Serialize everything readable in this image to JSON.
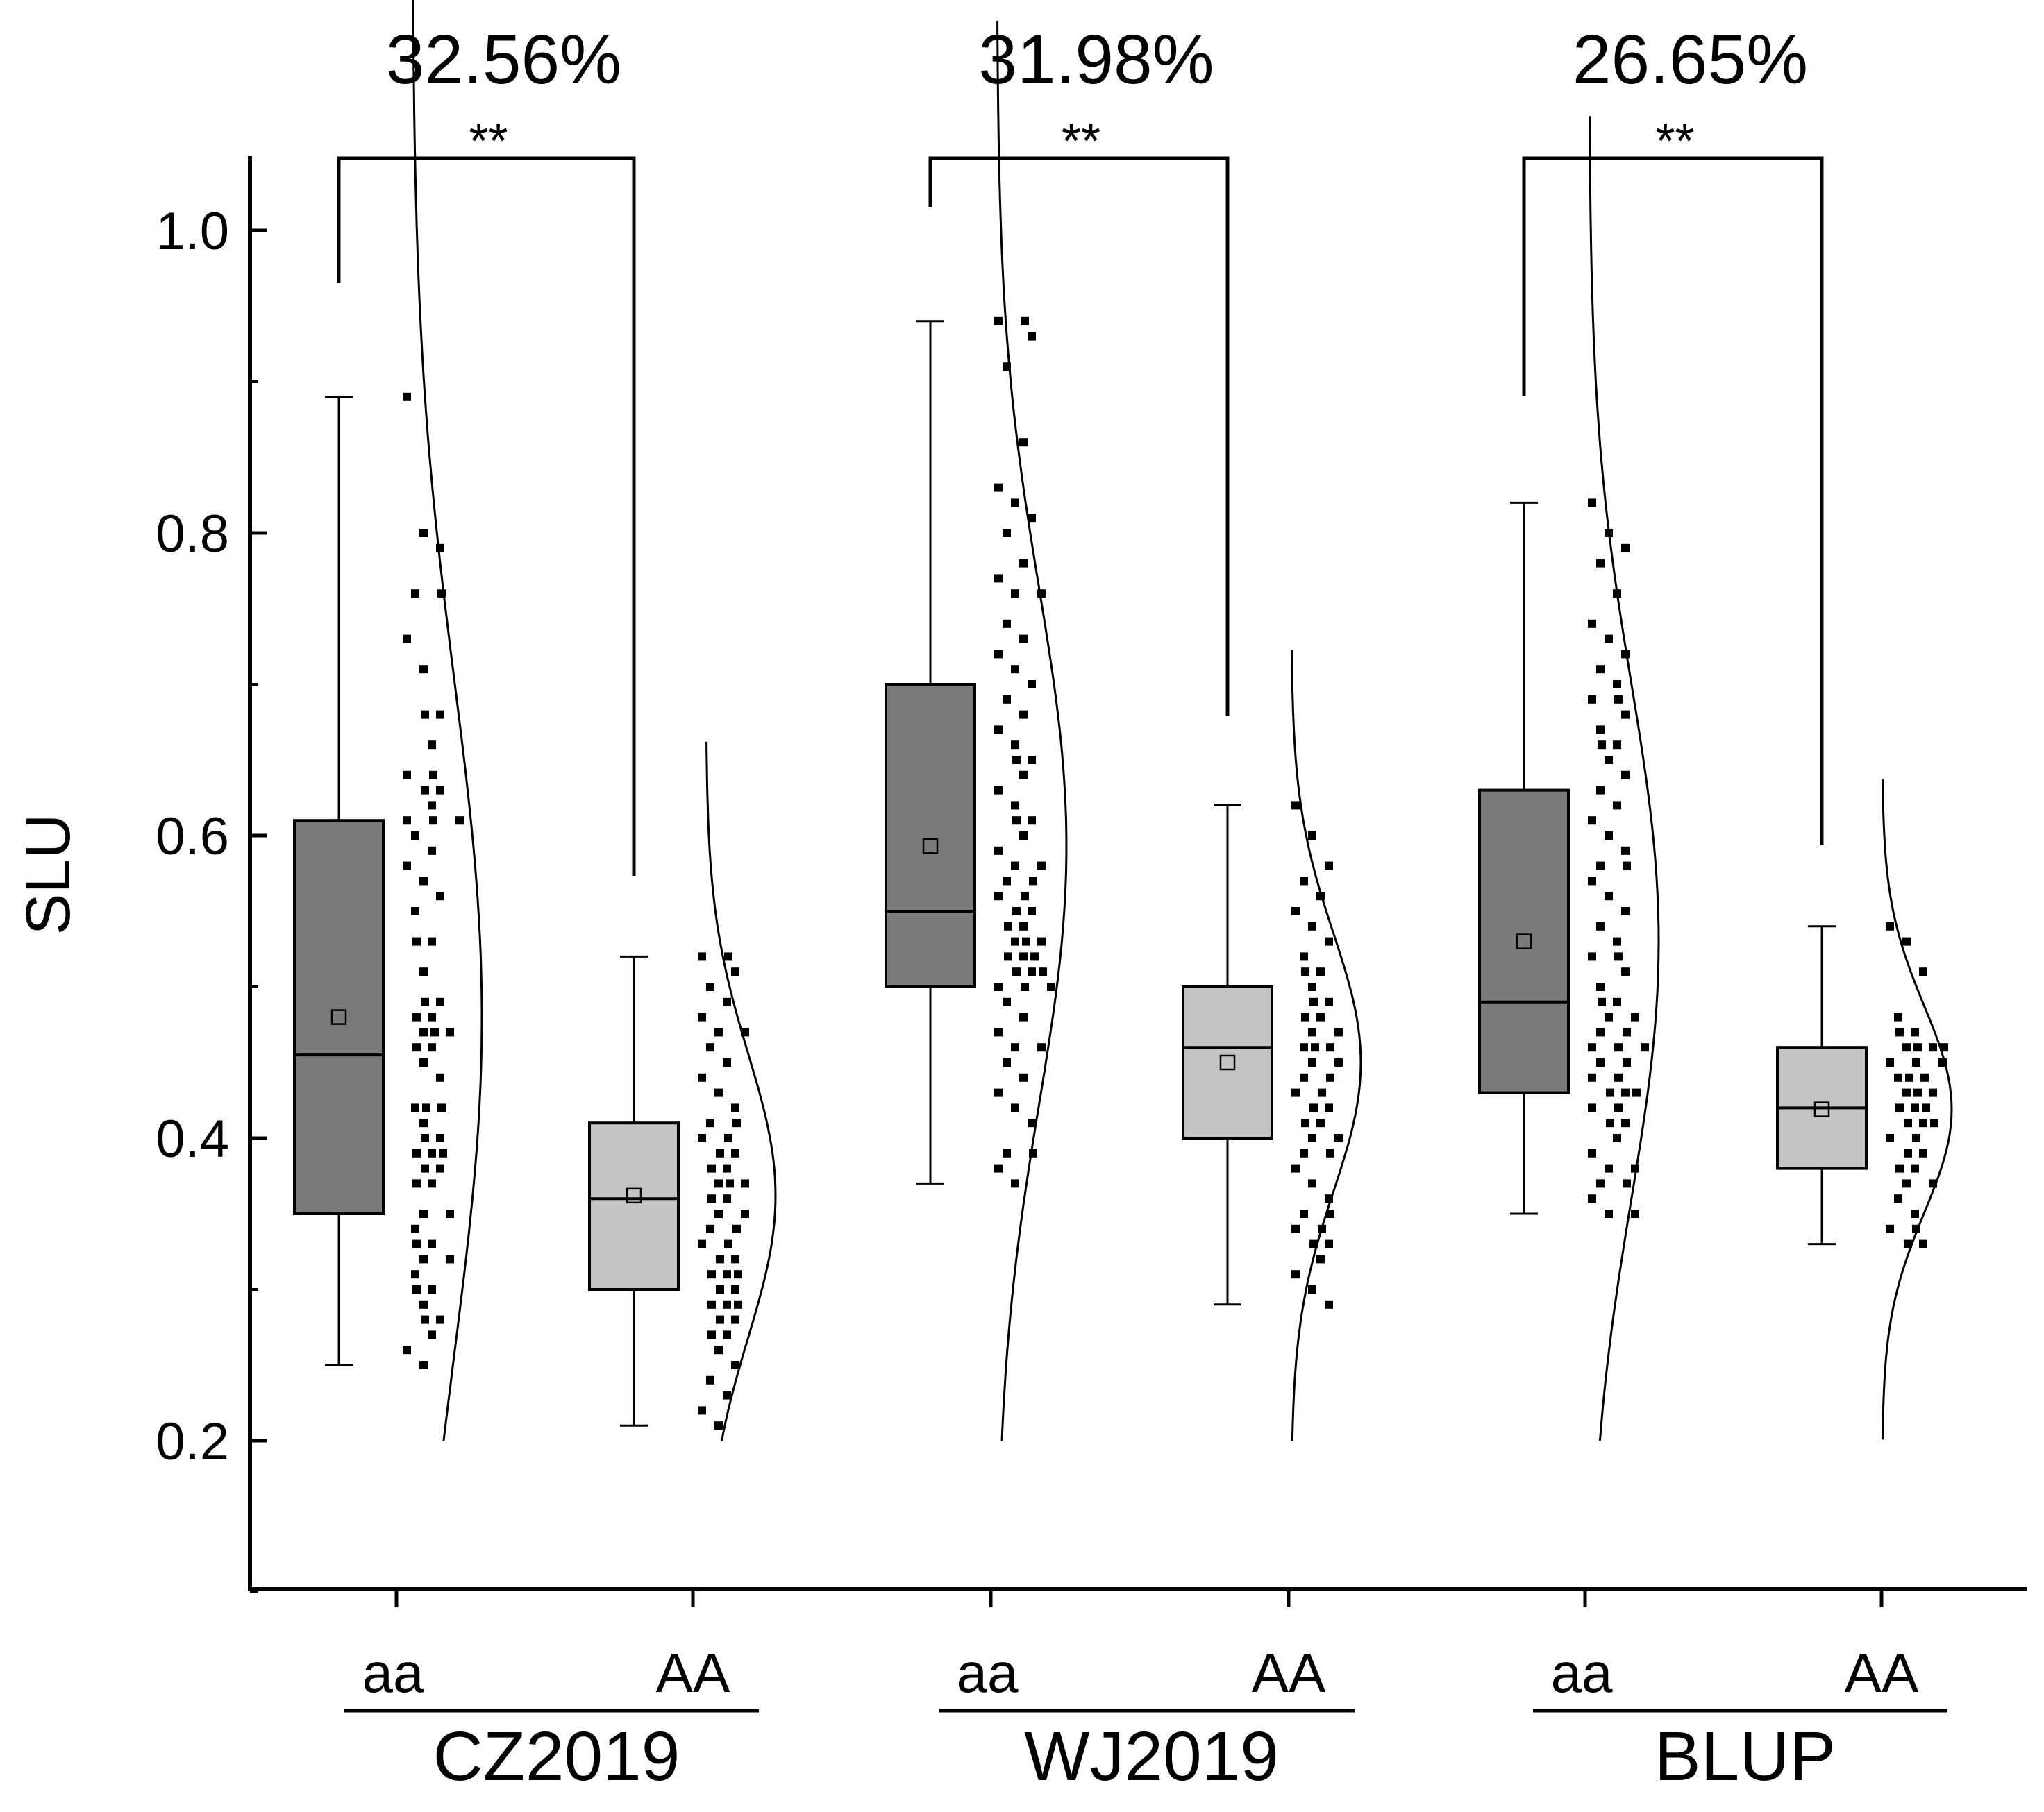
{
  "chart_data": {
    "type": "box",
    "ylabel": "SLU",
    "xlabel": "",
    "ylim": [
      0.1,
      1.05
    ],
    "yticks": [
      0.2,
      0.4,
      0.6,
      0.8,
      1.0
    ],
    "ytick_labels": [
      "0.2",
      "0.4",
      "0.6",
      "0.8",
      "1.0"
    ],
    "colors": {
      "aa": "#7a7a7a",
      "AA": "#c4c4c4",
      "line": "#000000"
    },
    "groups": [
      {
        "name": "CZ2019",
        "percent_label": "32.56%",
        "significance": "**",
        "boxes": [
          {
            "label": "aa",
            "min": 0.25,
            "q1": 0.35,
            "median": 0.455,
            "q3": 0.61,
            "max": 0.89,
            "mean": 0.48,
            "points": [
              0.89,
              0.8,
              0.79,
              0.76,
              0.76,
              0.73,
              0.71,
              0.68,
              0.68,
              0.66,
              0.64,
              0.64,
              0.63,
              0.63,
              0.62,
              0.61,
              0.61,
              0.61,
              0.6,
              0.59,
              0.58,
              0.57,
              0.56,
              0.55,
              0.53,
              0.53,
              0.51,
              0.49,
              0.49,
              0.48,
              0.48,
              0.47,
              0.47,
              0.47,
              0.46,
              0.46,
              0.45,
              0.44,
              0.42,
              0.42,
              0.42,
              0.41,
              0.4,
              0.4,
              0.39,
              0.39,
              0.39,
              0.38,
              0.38,
              0.37,
              0.37,
              0.35,
              0.35,
              0.34,
              0.33,
              0.33,
              0.32,
              0.32,
              0.31,
              0.3,
              0.3,
              0.29,
              0.28,
              0.28,
              0.27,
              0.26,
              0.25
            ]
          },
          {
            "label": "AA",
            "min": 0.21,
            "q1": 0.3,
            "median": 0.36,
            "q3": 0.41,
            "max": 0.52,
            "mean": 0.362,
            "points": [
              0.52,
              0.52,
              0.51,
              0.5,
              0.49,
              0.48,
              0.47,
              0.47,
              0.46,
              0.45,
              0.44,
              0.43,
              0.42,
              0.41,
              0.41,
              0.4,
              0.4,
              0.39,
              0.39,
              0.38,
              0.38,
              0.37,
              0.37,
              0.37,
              0.36,
              0.36,
              0.35,
              0.35,
              0.34,
              0.34,
              0.33,
              0.33,
              0.32,
              0.32,
              0.31,
              0.31,
              0.31,
              0.3,
              0.3,
              0.29,
              0.29,
              0.29,
              0.28,
              0.28,
              0.27,
              0.27,
              0.26,
              0.25,
              0.24,
              0.23,
              0.22,
              0.21
            ]
          }
        ]
      },
      {
        "name": "WJ2019",
        "percent_label": "31.98%",
        "significance": "**",
        "boxes": [
          {
            "label": "aa",
            "min": 0.37,
            "q1": 0.5,
            "median": 0.55,
            "q3": 0.7,
            "max": 0.94,
            "mean": 0.593,
            "points": [
              0.94,
              0.94,
              0.93,
              0.91,
              0.86,
              0.83,
              0.82,
              0.81,
              0.8,
              0.78,
              0.77,
              0.76,
              0.76,
              0.74,
              0.73,
              0.72,
              0.71,
              0.7,
              0.69,
              0.68,
              0.67,
              0.66,
              0.65,
              0.65,
              0.64,
              0.63,
              0.62,
              0.61,
              0.61,
              0.6,
              0.59,
              0.58,
              0.58,
              0.57,
              0.57,
              0.56,
              0.56,
              0.55,
              0.55,
              0.54,
              0.54,
              0.53,
              0.53,
              0.53,
              0.52,
              0.52,
              0.52,
              0.51,
              0.51,
              0.51,
              0.5,
              0.5,
              0.5,
              0.49,
              0.48,
              0.47,
              0.46,
              0.46,
              0.45,
              0.44,
              0.43,
              0.42,
              0.41,
              0.39,
              0.39,
              0.38,
              0.37
            ]
          },
          {
            "label": "AA",
            "min": 0.29,
            "q1": 0.4,
            "median": 0.46,
            "q3": 0.5,
            "max": 0.62,
            "mean": 0.45,
            "points": [
              0.62,
              0.6,
              0.58,
              0.57,
              0.56,
              0.55,
              0.54,
              0.53,
              0.52,
              0.51,
              0.51,
              0.5,
              0.49,
              0.49,
              0.48,
              0.48,
              0.47,
              0.47,
              0.46,
              0.46,
              0.46,
              0.45,
              0.45,
              0.44,
              0.44,
              0.43,
              0.43,
              0.42,
              0.42,
              0.41,
              0.41,
              0.4,
              0.4,
              0.39,
              0.39,
              0.38,
              0.37,
              0.36,
              0.35,
              0.35,
              0.34,
              0.34,
              0.33,
              0.33,
              0.32,
              0.31,
              0.3,
              0.29
            ]
          }
        ]
      },
      {
        "name": "BLUP",
        "percent_label": "26.65%",
        "significance": "**",
        "boxes": [
          {
            "label": "aa",
            "min": 0.35,
            "q1": 0.43,
            "median": 0.49,
            "q3": 0.63,
            "max": 0.82,
            "mean": 0.53,
            "points": [
              0.82,
              0.8,
              0.79,
              0.78,
              0.76,
              0.74,
              0.73,
              0.72,
              0.71,
              0.7,
              0.69,
              0.69,
              0.68,
              0.67,
              0.66,
              0.66,
              0.65,
              0.64,
              0.63,
              0.62,
              0.61,
              0.6,
              0.59,
              0.58,
              0.58,
              0.57,
              0.56,
              0.55,
              0.54,
              0.53,
              0.52,
              0.52,
              0.51,
              0.5,
              0.49,
              0.49,
              0.48,
              0.48,
              0.47,
              0.47,
              0.46,
              0.46,
              0.46,
              0.45,
              0.45,
              0.44,
              0.44,
              0.43,
              0.43,
              0.43,
              0.42,
              0.42,
              0.41,
              0.41,
              0.4,
              0.39,
              0.38,
              0.38,
              0.37,
              0.37,
              0.36,
              0.35,
              0.35
            ]
          },
          {
            "label": "AA",
            "min": 0.33,
            "q1": 0.38,
            "median": 0.42,
            "q3": 0.46,
            "max": 0.54,
            "mean": 0.419,
            "points": [
              0.54,
              0.53,
              0.51,
              0.48,
              0.47,
              0.47,
              0.46,
              0.46,
              0.46,
              0.46,
              0.45,
              0.45,
              0.45,
              0.44,
              0.44,
              0.44,
              0.43,
              0.43,
              0.43,
              0.42,
              0.42,
              0.42,
              0.41,
              0.41,
              0.41,
              0.4,
              0.4,
              0.39,
              0.39,
              0.38,
              0.38,
              0.37,
              0.37,
              0.36,
              0.35,
              0.34,
              0.34,
              0.33,
              0.33
            ]
          }
        ]
      }
    ]
  }
}
